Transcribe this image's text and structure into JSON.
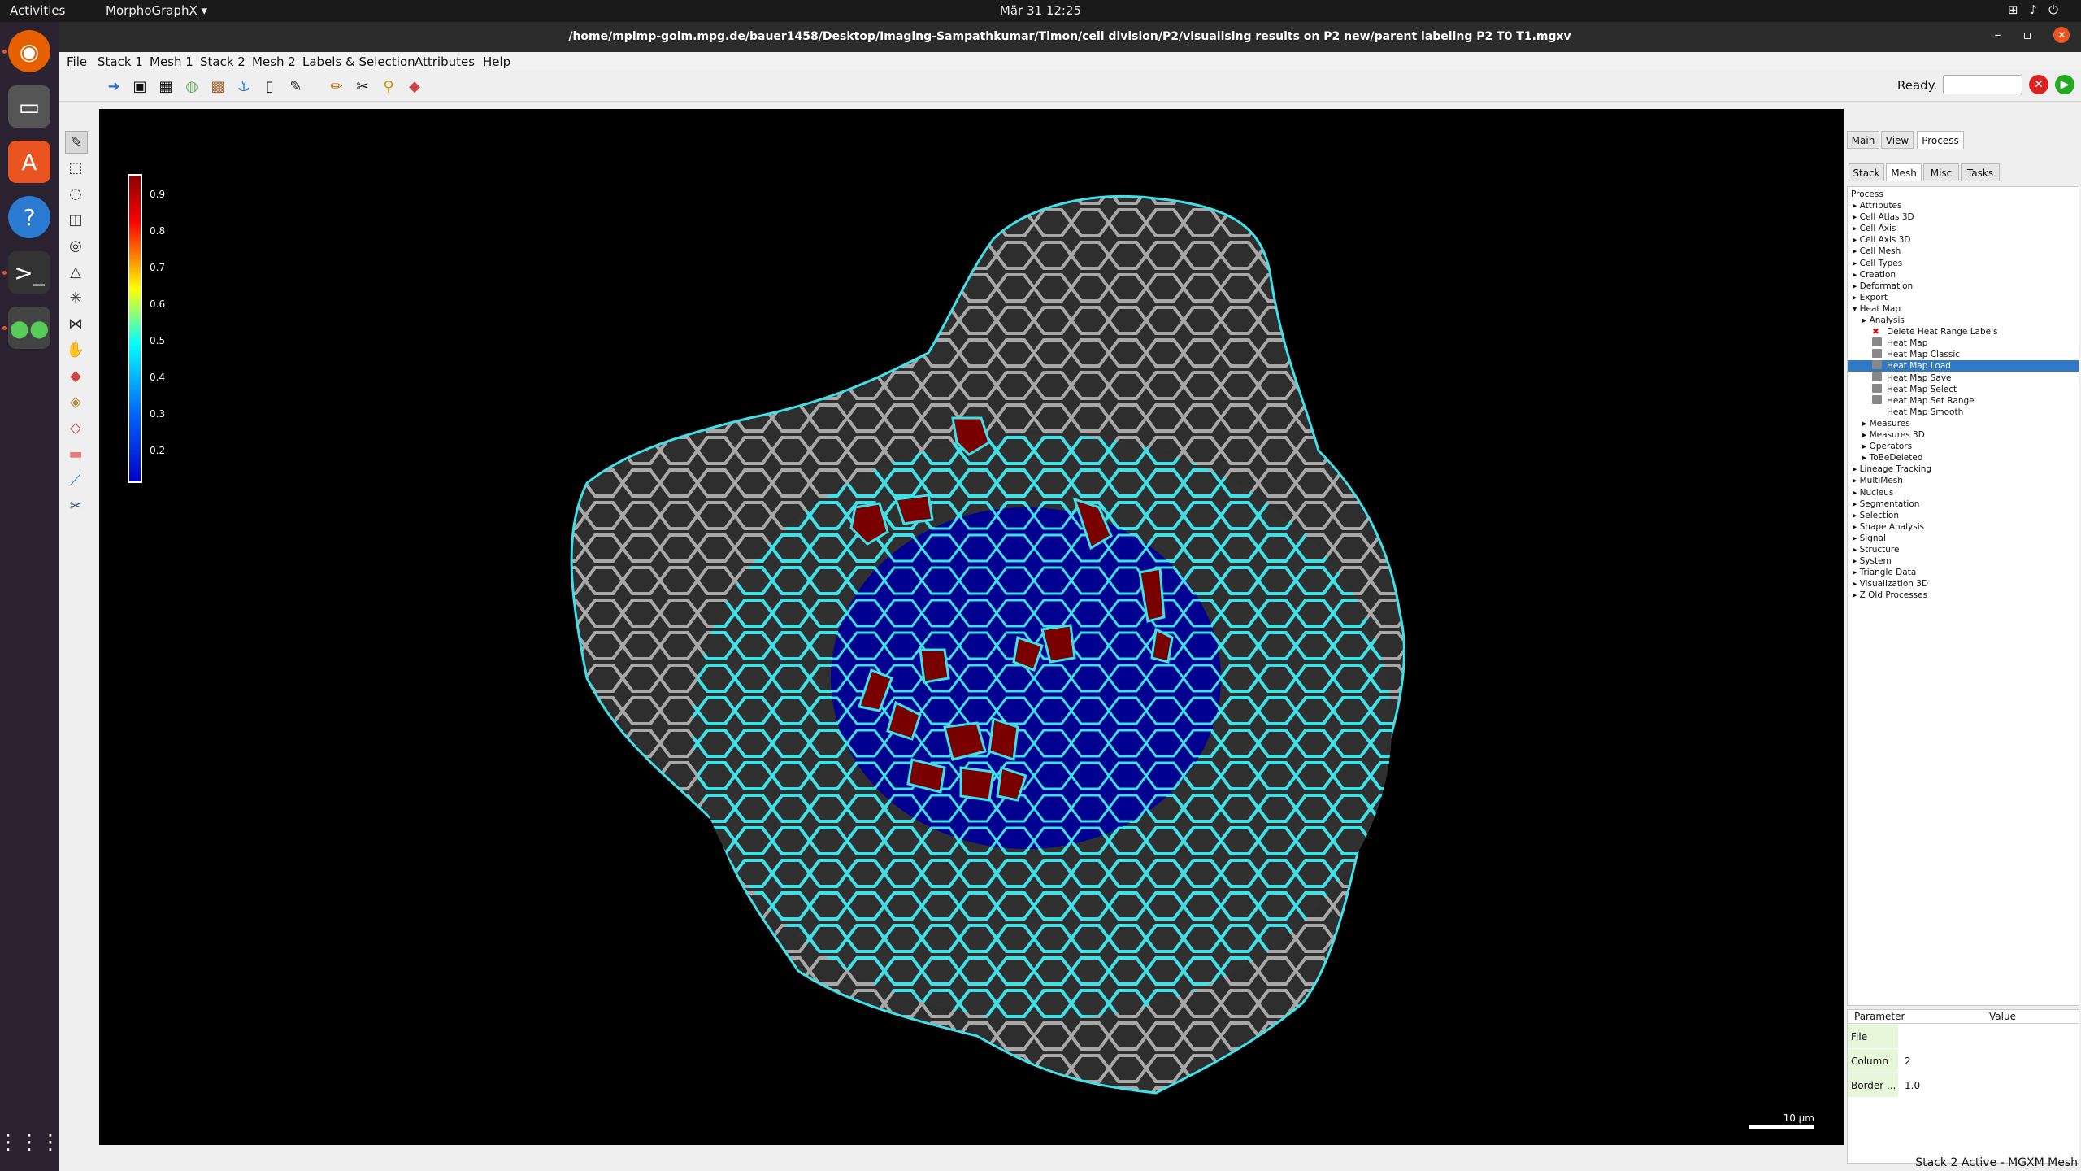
{
  "topbar": {
    "activities": "Activities",
    "app_menu": "MorphoGraphX ▾",
    "clock": "Mär 31  12:25"
  },
  "window": {
    "title": "/home/mpimp-golm.mpg.de/bauer1458/Desktop/Imaging-Sampathkumar/Timon/cell division/P2/visualising results on P2 new/parent labeling P2 T0 T1.mgxv"
  },
  "menu": [
    "File",
    "Stack 1",
    "Mesh 1",
    "Stack 2",
    "Mesh 2",
    "Labels & Selection",
    "Attributes",
    "Help"
  ],
  "toolbar": {
    "ready_label": "Ready.",
    "ready_value": ""
  },
  "colorbar": {
    "ticks": [
      "0.9",
      "0.8",
      "0.7",
      "0.6",
      "0.5",
      "0.4",
      "0.3",
      "0.2"
    ]
  },
  "scalebar": {
    "label": "10 µm"
  },
  "panel": {
    "tabs": [
      "Main",
      "View",
      "Process"
    ],
    "active_tab": "Process",
    "subtabs": [
      "Stack",
      "Mesh",
      "Misc",
      "Tasks"
    ],
    "active_subtab": "Mesh",
    "tree_header": "Process",
    "tree": [
      {
        "label": "Attributes",
        "level": 0
      },
      {
        "label": "Cell Atlas 3D",
        "level": 0
      },
      {
        "label": "Cell Axis",
        "level": 0
      },
      {
        "label": "Cell Axis 3D",
        "level": 0
      },
      {
        "label": "Cell Mesh",
        "level": 0
      },
      {
        "label": "Cell Types",
        "level": 0
      },
      {
        "label": "Creation",
        "level": 0
      },
      {
        "label": "Deformation",
        "level": 0
      },
      {
        "label": "Export",
        "level": 0
      },
      {
        "label": "Heat Map",
        "level": 0,
        "open": true
      },
      {
        "label": "Analysis",
        "level": 1
      },
      {
        "label": "Delete Heat Range Labels",
        "level": 2,
        "icon": "delete-icon"
      },
      {
        "label": "Heat Map",
        "level": 2,
        "icon": "process-icon"
      },
      {
        "label": "Heat Map Classic",
        "level": 2,
        "icon": "process-icon"
      },
      {
        "label": "Heat Map Load",
        "level": 2,
        "icon": "process-icon",
        "selected": true
      },
      {
        "label": "Heat Map Save",
        "level": 2,
        "icon": "process-icon"
      },
      {
        "label": "Heat Map Select",
        "level": 2,
        "icon": "process-icon"
      },
      {
        "label": "Heat Map Set Range",
        "level": 2,
        "icon": "process-icon"
      },
      {
        "label": "Heat Map Smooth",
        "level": 2
      },
      {
        "label": "Measures",
        "level": 1
      },
      {
        "label": "Measures 3D",
        "level": 1
      },
      {
        "label": "Operators",
        "level": 1
      },
      {
        "label": "ToBeDeleted",
        "level": 1
      },
      {
        "label": "Lineage Tracking",
        "level": 0
      },
      {
        "label": "MultiMesh",
        "level": 0
      },
      {
        "label": "Nucleus",
        "level": 0
      },
      {
        "label": "Segmentation",
        "level": 0
      },
      {
        "label": "Selection",
        "level": 0
      },
      {
        "label": "Shape Analysis",
        "level": 0
      },
      {
        "label": "Signal",
        "level": 0
      },
      {
        "label": "Structure",
        "level": 0
      },
      {
        "label": "System",
        "level": 0
      },
      {
        "label": "Triangle Data",
        "level": 0
      },
      {
        "label": "Visualization 3D",
        "level": 0
      },
      {
        "label": "Z Old Processes",
        "level": 0
      }
    ],
    "params_header": {
      "name": "Parameter",
      "value": "Value"
    },
    "params": [
      {
        "name": "File Name",
        "value": ""
      },
      {
        "name": "Column",
        "value": "2"
      },
      {
        "name": "Border ...",
        "value": "1.0"
      }
    ]
  },
  "statusbar": "Stack 2 Active - MGXM Mesh"
}
